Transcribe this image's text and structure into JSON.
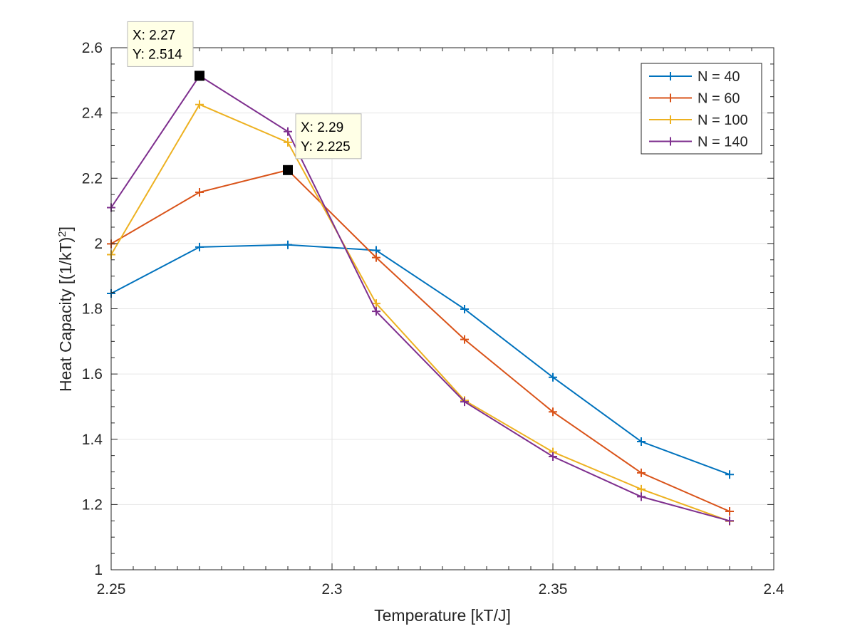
{
  "chart_data": {
    "type": "line",
    "title": "",
    "xlabel": "Temperature [kT/J]",
    "ylabel_main": "Heat Capacity [(1/kT)",
    "ylabel_sup": "2",
    "ylabel_tail": "]",
    "xlim": [
      2.25,
      2.4
    ],
    "ylim": [
      1,
      2.6
    ],
    "xticks": [
      2.25,
      2.3,
      2.35,
      2.4
    ],
    "xtick_labels": [
      "2.25",
      "2.3",
      "2.35",
      "2.4"
    ],
    "yticks": [
      1,
      1.2,
      1.4,
      1.6,
      1.8,
      2,
      2.2,
      2.4,
      2.6
    ],
    "ytick_labels": [
      "1",
      "1.2",
      "1.4",
      "1.6",
      "1.8",
      "2",
      "2.2",
      "2.4",
      "2.6"
    ],
    "grid": true,
    "marker": "plus",
    "legend_position": "top-right",
    "x": [
      2.25,
      2.27,
      2.29,
      2.31,
      2.33,
      2.35,
      2.37,
      2.39
    ],
    "series": [
      {
        "name": "N = 40",
        "color": "#0072BD",
        "values": [
          1.847,
          1.989,
          1.996,
          1.979,
          1.799,
          1.59,
          1.393,
          1.292
        ]
      },
      {
        "name": "N = 60",
        "color": "#D95319",
        "values": [
          1.999,
          2.157,
          2.225,
          1.957,
          1.706,
          1.484,
          1.297,
          1.179
        ]
      },
      {
        "name": "N = 100",
        "color": "#EDB120",
        "values": [
          1.966,
          2.426,
          2.31,
          1.816,
          1.519,
          1.361,
          1.247,
          1.149
        ]
      },
      {
        "name": "N = 140",
        "color": "#7E2F8E",
        "values": [
          2.11,
          2.514,
          2.343,
          1.792,
          1.515,
          1.347,
          1.224,
          1.15
        ]
      }
    ],
    "datatips": [
      {
        "x": 2.27,
        "y": 2.514,
        "x_text": "X: 2.27",
        "y_text": "Y: 2.514"
      },
      {
        "x": 2.29,
        "y": 2.225,
        "x_text": "X: 2.29",
        "y_text": "Y: 2.225"
      }
    ]
  }
}
